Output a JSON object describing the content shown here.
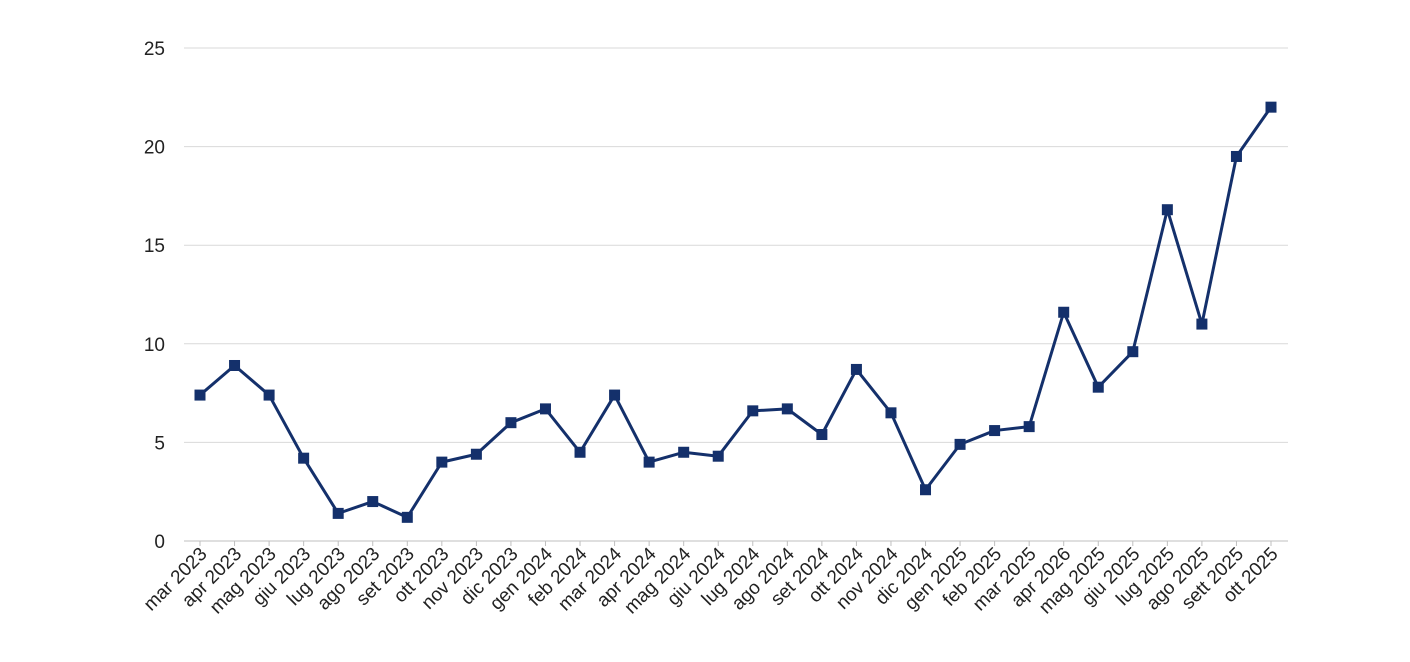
{
  "chart_data": {
    "type": "line",
    "title": "",
    "xlabel": "",
    "ylabel": "",
    "categories": [
      "mar 2023",
      "apr 2023",
      "mag 2023",
      "giu 2023",
      "lug 2023",
      "ago 2023",
      "set 2023",
      "ott 2023",
      "nov 2023",
      "dic 2023",
      "gen 2024",
      "feb 2024",
      "mar 2024",
      "apr 2024",
      "mag 2024",
      "giu 2024",
      "lug 2024",
      "ago 2024",
      "set 2024",
      "ott 2024",
      "nov 2024",
      "dic 2024",
      "gen 2025",
      "feb 2025",
      "mar 2025",
      "apr 2026",
      "mag 2025",
      "giu 2025",
      "lug 2025",
      "ago 2025",
      "sett 2025",
      "ott 2025"
    ],
    "series": [
      {
        "values": [
          7.4,
          8.9,
          7.4,
          4.2,
          1.4,
          2.0,
          1.2,
          4.0,
          4.4,
          6.0,
          6.7,
          4.5,
          7.4,
          4.0,
          4.5,
          4.3,
          6.6,
          6.7,
          5.4,
          8.7,
          6.5,
          2.6,
          4.9,
          5.6,
          5.8,
          11.6,
          7.8,
          9.6,
          16.8,
          11.0,
          19.5,
          22.0
        ],
        "color": "#14306b",
        "marker": "square"
      }
    ],
    "ylim": [
      0,
      25
    ],
    "yticks": [
      "0",
      "5",
      "10",
      "15",
      "20",
      "25"
    ],
    "grid": true,
    "legend": "none"
  }
}
